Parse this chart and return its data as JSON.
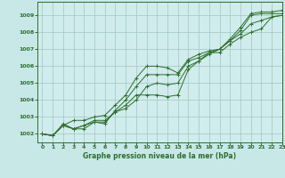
{
  "bg_color": "#c8e8e8",
  "plot_bg_color": "#d0ecec",
  "grid_color": "#a0c8c0",
  "line_color": "#2d6e2d",
  "xlabel": "Graphe pression niveau de la mer (hPa)",
  "xlim": [
    -0.5,
    23
  ],
  "ylim": [
    1001.5,
    1009.8
  ],
  "yticks": [
    1002,
    1003,
    1004,
    1005,
    1006,
    1007,
    1008,
    1009
  ],
  "xticks": [
    0,
    1,
    2,
    3,
    4,
    5,
    6,
    7,
    8,
    9,
    10,
    11,
    12,
    13,
    14,
    15,
    16,
    17,
    18,
    19,
    20,
    21,
    22,
    23
  ],
  "series": [
    [
      1002.0,
      1001.9,
      1002.5,
      1002.8,
      1002.8,
      1003.0,
      1003.1,
      1003.7,
      1004.3,
      1005.3,
      1006.0,
      1006.0,
      1005.9,
      1005.6,
      1006.4,
      1006.7,
      1006.9,
      1007.0,
      1007.6,
      1008.3,
      1009.1,
      1009.2,
      1009.2,
      1009.3
    ],
    [
      1002.0,
      1001.9,
      1002.5,
      1002.3,
      1002.3,
      1002.7,
      1002.6,
      1003.4,
      1004.0,
      1004.8,
      1005.5,
      1005.5,
      1005.5,
      1005.5,
      1006.3,
      1006.5,
      1006.8,
      1007.0,
      1007.5,
      1008.1,
      1009.0,
      1009.1,
      1009.1,
      1009.1
    ],
    [
      1002.0,
      1001.9,
      1002.5,
      1002.3,
      1002.5,
      1002.7,
      1002.7,
      1003.3,
      1003.7,
      1004.3,
      1004.3,
      1004.3,
      1004.2,
      1004.3,
      1005.8,
      1006.3,
      1006.7,
      1007.0,
      1007.5,
      1007.9,
      1008.5,
      1008.7,
      1008.9,
      1009.0
    ],
    [
      1002.0,
      1001.9,
      1002.6,
      1002.3,
      1002.5,
      1002.8,
      1002.8,
      1003.3,
      1003.5,
      1004.0,
      1004.8,
      1005.0,
      1004.9,
      1005.0,
      1006.0,
      1006.3,
      1006.8,
      1006.8,
      1007.3,
      1007.7,
      1008.0,
      1008.2,
      1008.9,
      1009.0
    ]
  ]
}
